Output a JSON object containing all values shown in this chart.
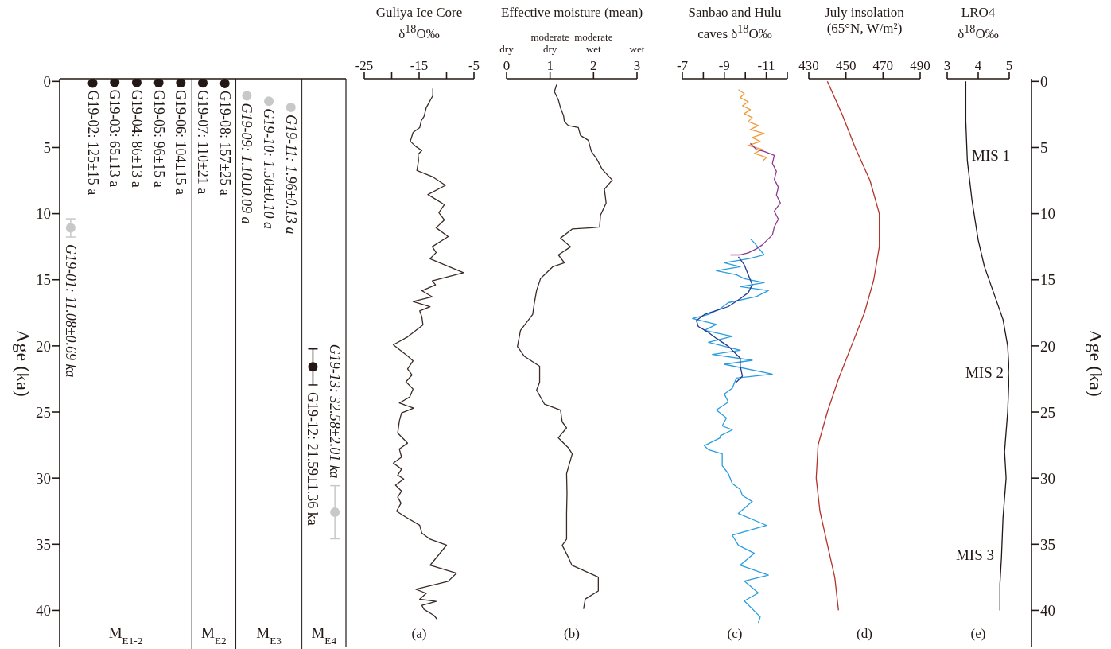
{
  "chart_data": [
    {
      "type": "scatter",
      "ylabel": "Age (ka)",
      "categories": [
        null,
        null,
        null,
        null,
        null,
        null,
        null,
        null,
        null,
        null,
        null,
        null,
        null
      ],
      "ylim": [
        42.8,
        -0.2
      ],
      "yticks": [
        0,
        5,
        10,
        15,
        20,
        25,
        30,
        35,
        40
      ],
      "tick_labels": "y",
      "marker": "circle",
      "series": [
        {
          "color": "#231815",
          "values": [
            null,
            0.125,
            0.065,
            0.086,
            0.096,
            0.104,
            0.11,
            0.157,
            null,
            null,
            null,
            21.59,
            null
          ],
          "errors": [
            null,
            null,
            null,
            null,
            null,
            null,
            null,
            null,
            null,
            null,
            null,
            1.36,
            null
          ]
        },
        {
          "color": "#c8c8c8",
          "values": [
            11.08,
            null,
            null,
            null,
            null,
            null,
            null,
            null,
            1.1,
            1.5,
            1.96,
            null,
            32.58
          ],
          "errors": [
            0.69,
            null,
            null,
            null,
            null,
            null,
            null,
            null,
            null,
            null,
            null,
            null,
            2.01
          ]
        }
      ],
      "annotations": [
        {
          "text": "G19-01: 11.08±0.69 ka",
          "y": 11.08
        },
        {
          "text": "G19-02: 125±15 a",
          "y": 0.125
        },
        {
          "text": "G19-03: 65±13 a",
          "y": 0.065
        },
        {
          "text": "G19-04: 86±13 a",
          "y": 0.086
        },
        {
          "text": "G19-05: 96±15 a",
          "y": 0.096
        },
        {
          "text": "G19-06: 104±15 a",
          "y": 0.104
        },
        {
          "text": "G19-07: 110±21 a",
          "y": 0.11
        },
        {
          "text": "G19-08: 157±25 a",
          "y": 0.157
        },
        {
          "text": "G19-09: 1.10±0.09 a",
          "y": 1.1
        },
        {
          "text": "G19-10: 1.50±0.10 a",
          "y": 1.5
        },
        {
          "text": "G19-11: 1.96±0.13 a",
          "y": 1.96
        },
        {
          "text": "G19-12: 21.59±1.36 ka",
          "y": 21.59
        },
        {
          "text": "G19-13: 32.58±2.01 ka",
          "y": 32.58
        },
        "M$_{E1-2}$",
        "M$_{E2}$",
        "M$_{E3}$",
        "M$_{E4}$"
      ]
    },
    {
      "type": "line",
      "title": "Guliya Ice Core",
      "subtitle": "δ$^{18}$O‰",
      "xlabel": "(a)",
      "xlim": [
        -25,
        -5
      ],
      "xticks": [
        -25,
        {
          "value": -20,
          "label": null
        },
        -15,
        {
          "value": -10,
          "label": null
        },
        -5
      ],
      "ylim": [
        42.8,
        -0.2
      ],
      "tick_labels": "x",
      "color": "#3b2a26",
      "x": [
        -12.5,
        -12.5,
        -13.7,
        -14.1,
        -14.6,
        -14.9,
        -16.1,
        -16.6,
        -15.6,
        -14.5,
        -15.2,
        -15.1,
        -15.4,
        -12.6,
        -10.2,
        -13.4,
        -10.4,
        -11.4,
        -10.4,
        -11.9,
        -9.7,
        -12.6,
        -11.9,
        -13.0,
        -6.9,
        -12.6,
        -12.0,
        -14.5,
        -12.6,
        -16.1,
        -13.0,
        -14.9,
        -14.5,
        -14.3,
        -17.1,
        -19.7,
        -17.8,
        -16.9,
        -16.1,
        -17.1,
        -16.3,
        -17.4,
        -16.1,
        -16.7,
        -18.6,
        -16.0,
        -18.2,
        -18.6,
        -18.9,
        -17.1,
        -18.6,
        -18.2,
        -19.7,
        -18.2,
        -18.9,
        -17.8,
        -19.3,
        -18.2,
        -18.9,
        -18.3,
        -19.1,
        -17.4,
        -14.9,
        -14.5,
        -13.0,
        -10.0,
        -13.0,
        -8.2,
        -9.7,
        -15.6,
        -13.7,
        -14.9,
        -11.9,
        -14.5,
        -14.1,
        -12.3,
        -11.7
      ],
      "values": [
        0.53,
        1.08,
        1.99,
        2.65,
        2.96,
        3.5,
        3.86,
        4.53,
        4.92,
        5.23,
        5.53,
        5.98,
        6.74,
        7.2,
        7.86,
        8.56,
        9.32,
        9.92,
        10.47,
        11.07,
        11.74,
        12.5,
        12.95,
        13.41,
        14.47,
        15.08,
        15.38,
        15.83,
        16.29,
        16.65,
        17.04,
        17.35,
        17.8,
        18.41,
        19.32,
        19.92,
        20.53,
        20.83,
        21.13,
        21.74,
        22.2,
        22.71,
        23.26,
        23.86,
        24.32,
        24.71,
        25.07,
        25.68,
        26.59,
        27.35,
        27.8,
        28.41,
        28.86,
        29.32,
        29.77,
        30.07,
        30.53,
        30.98,
        31.44,
        31.89,
        32.5,
        32.95,
        33.56,
        34.16,
        34.62,
        35.07,
        36.59,
        37.19,
        37.8,
        38.4,
        38.71,
        39.16,
        39.32,
        39.62,
        39.92,
        40.38,
        40.68
      ]
    },
    {
      "type": "line",
      "title": "Effective moisture (mean)",
      "xlabel": "(b)",
      "xlim": [
        0,
        3
      ],
      "xticks": [
        0,
        1,
        2,
        3
      ],
      "ylim": [
        42.8,
        -0.2
      ],
      "tick_labels": "x",
      "color": "#3b2a26",
      "annotations": [
        "dry",
        "moderate\ndry",
        "moderate\nwet",
        "wet"
      ],
      "x": [
        1.15,
        1.1,
        1.19,
        1.24,
        1.31,
        1.33,
        1.42,
        1.65,
        1.7,
        1.88,
        1.95,
        2.08,
        2.2,
        2.43,
        2.25,
        2.29,
        2.16,
        2.14,
        1.97,
        1.51,
        1.24,
        1.47,
        1.19,
        1.33,
        1.06,
        0.87,
        0.78,
        0.69,
        0.64,
        0.6,
        0.32,
        0.25,
        0.41,
        0.76,
        0.76,
        0.69,
        0.87,
        1.24,
        1.28,
        1.38,
        1.19,
        1.42,
        1.51,
        1.38,
        1.39,
        1.38,
        1.38,
        1.28,
        1.42,
        1.5,
        2.11,
        2.11,
        1.81,
        1.77
      ],
      "values": [
        0.24,
        0.78,
        1.39,
        1.99,
        2.59,
        3.04,
        3.34,
        3.49,
        4.09,
        4.45,
        5.3,
        5.9,
        6.65,
        7.46,
        8.15,
        9.2,
        10.11,
        11.01,
        11.07,
        11.16,
        11.85,
        12.51,
        13.12,
        13.72,
        14.02,
        14.62,
        14.92,
        15.82,
        16.73,
        17.63,
        18.83,
        20.04,
        20.79,
        21.54,
        22.74,
        23.34,
        24.4,
        24.85,
        25.75,
        26.2,
        26.95,
        27.7,
        28.16,
        29.66,
        31.16,
        32.67,
        34.62,
        35.08,
        35.98,
        36.58,
        37.48,
        38.53,
        39.14,
        39.89
      ]
    },
    {
      "type": "line",
      "title": "Sanbao and Hulu",
      "subtitle": "caves δ$^{18}$O‰",
      "xlabel": "(c)",
      "xlim": [
        -7,
        -12
      ],
      "xticks": [
        -7,
        {
          "value": -8,
          "label": null
        },
        -9,
        {
          "value": -10,
          "label": null
        },
        -11,
        {
          "value": -12,
          "label": null
        }
      ],
      "ylim": [
        42.8,
        -0.2
      ],
      "tick_labels": "x",
      "series": [
        {
          "color": "#2a9de0",
          "x": [
            -10.24,
            -10.43,
            -10.9,
            -10.14,
            -9.0,
            -9.76,
            -8.62,
            -9.57,
            -9.95,
            -10.9,
            -9.76,
            -11.1,
            -10.52,
            -9.19,
            -8.81,
            -8.24,
            -7.48,
            -8.62,
            -8.05,
            -9.38,
            -8.24,
            -9.76,
            -8.43,
            -10.33,
            -9.0,
            -11.29,
            -9.57,
            -9.38,
            -9.0,
            -9.19,
            -8.62,
            -9.1,
            -8.9,
            -9.38,
            -8.81,
            -8.81,
            -8.05,
            -8.24,
            -8.9,
            -8.9,
            -9.19,
            -9.38,
            -9.76,
            -9.86,
            -10.33,
            -9.67,
            -11.0,
            -9.38,
            -9.67,
            -10.43,
            -9.76,
            -11.1,
            -9.95,
            -10.62,
            -9.95,
            -10.71,
            -10.62
          ],
          "values": [
            11.91,
            12.21,
            13.12,
            13.42,
            13.72,
            14.02,
            14.32,
            14.62,
            14.92,
            15.22,
            15.52,
            15.82,
            16.27,
            16.73,
            17.18,
            17.63,
            17.93,
            18.38,
            18.83,
            19.28,
            19.73,
            20.33,
            20.64,
            21.09,
            21.39,
            22.14,
            22.44,
            23.19,
            23.64,
            24.25,
            24.85,
            25.45,
            26.05,
            26.35,
            26.8,
            26.95,
            27.55,
            27.85,
            28.16,
            29.06,
            29.66,
            30.41,
            30.86,
            31.31,
            31.77,
            32.67,
            33.57,
            34.32,
            35.08,
            35.68,
            36.58,
            37.33,
            37.78,
            38.68,
            39.28,
            40.49,
            40.94
          ]
        },
        {
          "color": "#1f3c93",
          "x": [
            -9.67,
            -9.95,
            -10.14,
            -10.33,
            -10.14,
            -9.76,
            -9.19,
            -8.62,
            -8.05,
            -7.67,
            -7.76,
            -8.24,
            -8.62,
            -9.19,
            -9.48,
            -9.76,
            -9.76,
            -9.86,
            -9.57
          ],
          "values": [
            13.27,
            13.87,
            14.62,
            15.37,
            15.97,
            16.43,
            17.03,
            17.33,
            17.63,
            18.08,
            18.53,
            18.98,
            19.43,
            20.03,
            20.49,
            20.94,
            21.54,
            22.29,
            22.74
          ]
        },
        {
          "color": "#f39a3a",
          "x": [
            -9.67,
            -9.95,
            -9.76,
            -10.14,
            -9.86,
            -10.24,
            -9.95,
            -10.33,
            -10.14,
            -10.62,
            -10.24,
            -10.9,
            -10.33,
            -10.71,
            -10.14,
            -10.81,
            -10.43,
            -11.0,
            -10.81
          ],
          "values": [
            0.63,
            0.93,
            1.23,
            1.54,
            1.84,
            2.14,
            2.44,
            2.74,
            3.04,
            3.34,
            3.64,
            3.94,
            4.24,
            4.54,
            4.84,
            5.14,
            5.45,
            5.75,
            6.05
          ]
        },
        {
          "color": "#8e3a8e",
          "x": [
            -10.24,
            -10.52,
            -10.9,
            -11.38,
            -11.29,
            -11.48,
            -11.38,
            -11.57,
            -11.48,
            -11.67,
            -11.38,
            -11.57,
            -11.38,
            -11.29,
            -11.0,
            -10.81,
            -10.52,
            -10.14,
            -9.76,
            -9.29
          ],
          "values": [
            4.69,
            5.14,
            5.3,
            5.6,
            6.2,
            6.8,
            7.4,
            8.0,
            8.6,
            9.2,
            9.81,
            10.41,
            11.01,
            11.61,
            12.06,
            12.36,
            12.66,
            12.96,
            13.12,
            13.12
          ]
        }
      ]
    },
    {
      "type": "line",
      "title": "July insolation",
      "subtitle": "(65°N, W/m²)",
      "xlabel": "(d)",
      "xlim": [
        430,
        490
      ],
      "xticks": [
        430,
        450,
        470,
        490
      ],
      "ylim": [
        42.8,
        -0.2
      ],
      "tick_labels": "x",
      "color": "#b5322a",
      "x": [
        440,
        448,
        455,
        463,
        468,
        468,
        465,
        460,
        453,
        446,
        440,
        435,
        434,
        436,
        440,
        444,
        446
      ],
      "values": [
        0,
        2.5,
        5,
        7.5,
        10,
        12.5,
        15,
        17.5,
        20,
        22.5,
        25,
        27.5,
        30,
        32.5,
        35,
        37.5,
        40
      ]
    },
    {
      "type": "line",
      "title": "LRO4",
      "subtitle": "δ$^{18}$O‰",
      "xlabel": "(e)",
      "ylabel": "Age (ka)",
      "xlim": [
        3,
        5
      ],
      "xticks": [
        3,
        4,
        5
      ],
      "ylim": [
        42.8,
        -0.2
      ],
      "yticks": [
        0,
        5,
        10,
        15,
        20,
        25,
        30,
        35,
        40
      ],
      "color": "#231815",
      "annotations": [
        "MIS 1",
        "MIS 2",
        "MIS 3"
      ],
      "x": [
        3.6,
        3.6,
        3.65,
        3.8,
        4.0,
        4.2,
        4.5,
        4.8,
        4.95,
        5.0,
        4.95,
        4.85,
        4.9,
        4.8,
        4.75,
        4.7,
        4.7
      ],
      "values": [
        0,
        3,
        6,
        9,
        12,
        14,
        16,
        18,
        20,
        22,
        25,
        28,
        30,
        33,
        36,
        38,
        40
      ]
    }
  ]
}
